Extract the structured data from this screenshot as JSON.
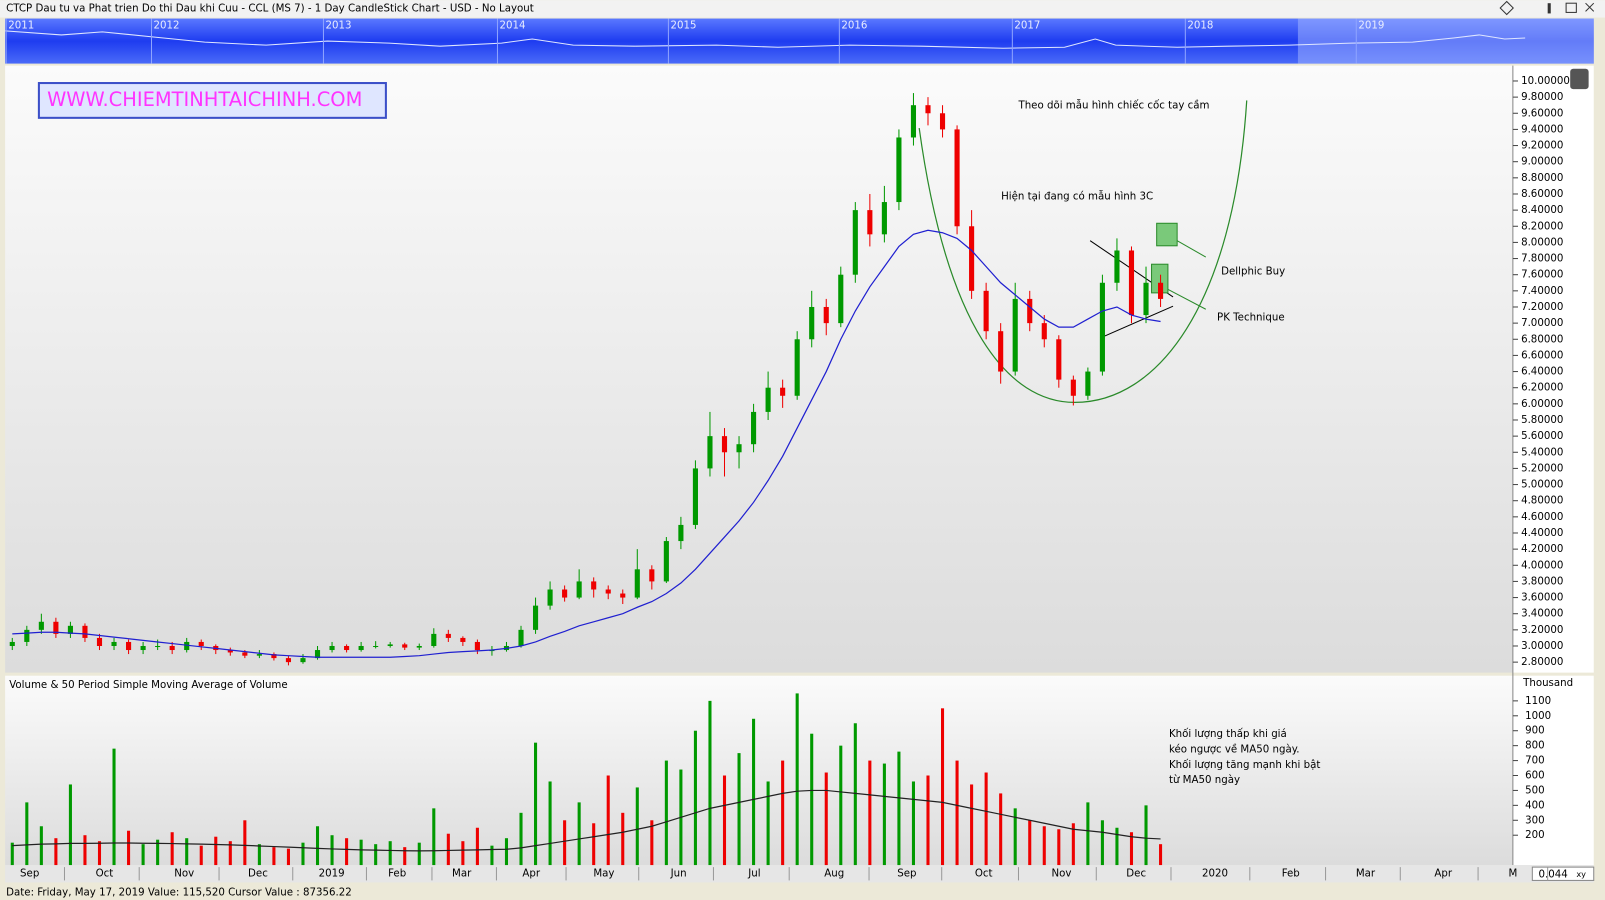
{
  "header": {
    "title": "CTCP Dau tu va Phat trien Do thi Dau khi Cuu - CCL (MS 7) - 1 Day CandleStick Chart - USD - No Layout"
  },
  "navigator": {
    "years": [
      "2011",
      "2012",
      "2013",
      "2014",
      "2015",
      "2016",
      "2017",
      "2018",
      "2019"
    ]
  },
  "chart_data": [
    {
      "type": "candlestick",
      "up_color": "#009900",
      "down_color": "#ee0000",
      "open": [
        3.0,
        3.05,
        3.2,
        3.3,
        3.15,
        3.25,
        3.1,
        3.0,
        3.05,
        2.95,
        3.0,
        3.0,
        2.95,
        3.05,
        3.0,
        2.95,
        2.92,
        2.88,
        2.9,
        2.85,
        2.8,
        2.85,
        2.95,
        3.0,
        2.95,
        3.0,
        3.0,
        3.02,
        2.98,
        3.0,
        3.15,
        3.1,
        3.05,
        2.95,
        2.95,
        3.0,
        3.2,
        3.5,
        3.7,
        3.6,
        3.8,
        3.7,
        3.65,
        3.6,
        3.95,
        3.8,
        4.3,
        4.5,
        5.2,
        5.6,
        5.4,
        5.5,
        5.9,
        6.2,
        6.1,
        6.8,
        7.2,
        7.0,
        7.6,
        8.4,
        8.1,
        8.5,
        9.3,
        9.7,
        9.6,
        9.4,
        8.2,
        7.4,
        6.9,
        6.4,
        7.3,
        7.0,
        6.8,
        6.3,
        6.1,
        6.4,
        7.5,
        7.9,
        7.1,
        7.5
      ],
      "high": [
        3.1,
        3.25,
        3.4,
        3.35,
        3.3,
        3.28,
        3.15,
        3.1,
        3.08,
        3.05,
        3.08,
        3.05,
        3.1,
        3.08,
        3.02,
        2.98,
        2.95,
        2.95,
        2.92,
        2.88,
        2.9,
        3.0,
        3.05,
        3.02,
        3.05,
        3.06,
        3.05,
        3.04,
        3.03,
        3.22,
        3.2,
        3.12,
        3.08,
        3.0,
        3.05,
        3.25,
        3.6,
        3.8,
        3.75,
        3.95,
        3.85,
        3.75,
        3.7,
        4.2,
        4.0,
        4.35,
        4.6,
        5.3,
        5.9,
        5.7,
        5.6,
        6.0,
        6.4,
        6.3,
        6.9,
        7.4,
        7.3,
        7.7,
        8.5,
        8.6,
        8.7,
        9.4,
        9.85,
        9.8,
        9.7,
        9.45,
        8.4,
        7.5,
        7.0,
        7.5,
        7.4,
        7.1,
        6.85,
        6.35,
        6.45,
        7.6,
        8.05,
        7.95,
        7.7,
        7.6
      ],
      "low": [
        2.95,
        3.0,
        3.15,
        3.1,
        3.1,
        3.05,
        2.95,
        2.95,
        2.9,
        2.9,
        2.95,
        2.9,
        2.92,
        2.95,
        2.9,
        2.88,
        2.85,
        2.85,
        2.82,
        2.76,
        2.78,
        2.83,
        2.92,
        2.92,
        2.93,
        2.97,
        2.98,
        2.95,
        2.95,
        2.98,
        3.05,
        3.0,
        2.9,
        2.88,
        2.93,
        2.98,
        3.15,
        3.45,
        3.55,
        3.58,
        3.6,
        3.58,
        3.52,
        3.58,
        3.7,
        3.78,
        4.2,
        4.45,
        5.1,
        5.1,
        5.2,
        5.4,
        5.8,
        5.95,
        6.05,
        6.7,
        6.85,
        6.95,
        7.5,
        7.95,
        8.0,
        8.4,
        9.2,
        9.45,
        9.3,
        8.1,
        7.3,
        6.8,
        6.25,
        6.35,
        6.9,
        6.7,
        6.2,
        5.98,
        6.05,
        6.35,
        7.4,
        7.0,
        7.0,
        7.2
      ],
      "close": [
        3.05,
        3.2,
        3.3,
        3.15,
        3.25,
        3.1,
        3.0,
        3.05,
        2.95,
        3.0,
        3.0,
        2.95,
        3.05,
        3.0,
        2.95,
        2.92,
        2.88,
        2.9,
        2.85,
        2.8,
        2.85,
        2.95,
        3.0,
        2.95,
        3.0,
        3.0,
        3.02,
        2.98,
        3.0,
        3.15,
        3.1,
        3.05,
        2.95,
        2.95,
        3.0,
        3.2,
        3.5,
        3.7,
        3.6,
        3.8,
        3.7,
        3.65,
        3.6,
        3.95,
        3.8,
        4.3,
        4.5,
        5.2,
        5.6,
        5.4,
        5.5,
        5.9,
        6.2,
        6.1,
        6.8,
        7.2,
        7.0,
        7.6,
        8.4,
        8.1,
        8.5,
        9.3,
        9.7,
        9.6,
        9.4,
        8.2,
        7.4,
        6.9,
        6.4,
        7.3,
        7.0,
        6.8,
        6.3,
        6.1,
        6.4,
        7.5,
        7.9,
        7.1,
        7.5,
        7.3
      ],
      "ma": {
        "color": "#2020d0",
        "values": [
          3.15,
          3.16,
          3.17,
          3.17,
          3.16,
          3.15,
          3.13,
          3.11,
          3.09,
          3.07,
          3.05,
          3.03,
          3.01,
          2.99,
          2.97,
          2.95,
          2.93,
          2.91,
          2.89,
          2.88,
          2.87,
          2.86,
          2.86,
          2.86,
          2.86,
          2.86,
          2.86,
          2.87,
          2.88,
          2.9,
          2.92,
          2.93,
          2.94,
          2.95,
          2.97,
          3.0,
          3.05,
          3.12,
          3.18,
          3.25,
          3.3,
          3.35,
          3.4,
          3.48,
          3.55,
          3.65,
          3.78,
          3.95,
          4.15,
          4.35,
          4.55,
          4.78,
          5.05,
          5.35,
          5.7,
          6.05,
          6.4,
          6.8,
          7.15,
          7.45,
          7.7,
          7.95,
          8.1,
          8.15,
          8.12,
          8.05,
          7.9,
          7.7,
          7.5,
          7.35,
          7.2,
          7.05,
          6.95,
          6.95,
          7.05,
          7.15,
          7.2,
          7.1,
          7.05,
          7.02
        ]
      },
      "ylim": [
        2.67,
        10.19
      ],
      "yticks": [
        {
          "value": 2.8,
          "label": "2.80000"
        },
        {
          "value": 3.0,
          "label": "3.00000"
        },
        {
          "value": 3.2,
          "label": "3.20000"
        },
        {
          "value": 3.4,
          "label": "3.40000"
        },
        {
          "value": 3.6,
          "label": "3.60000"
        },
        {
          "value": 3.8,
          "label": "3.80000"
        },
        {
          "value": 4.0,
          "label": "4.00000"
        },
        {
          "value": 4.2,
          "label": "4.20000"
        },
        {
          "value": 4.4,
          "label": "4.40000"
        },
        {
          "value": 4.6,
          "label": "4.60000"
        },
        {
          "value": 4.8,
          "label": "4.80000"
        },
        {
          "value": 5.0,
          "label": "5.00000"
        },
        {
          "value": 5.2,
          "label": "5.20000"
        },
        {
          "value": 5.4,
          "label": "5.40000"
        },
        {
          "value": 5.6,
          "label": "5.60000"
        },
        {
          "value": 5.8,
          "label": "5.80000"
        },
        {
          "value": 6.0,
          "label": "6.00000"
        },
        {
          "value": 6.2,
          "label": "6.20000"
        },
        {
          "value": 6.4,
          "label": "6.40000"
        },
        {
          "value": 6.6,
          "label": "6.60000"
        },
        {
          "value": 6.8,
          "label": "6.80000"
        },
        {
          "value": 7.0,
          "label": "7.00000"
        },
        {
          "value": 7.2,
          "label": "7.20000"
        },
        {
          "value": 7.4,
          "label": "7.40000"
        },
        {
          "value": 7.6,
          "label": "7.60000"
        },
        {
          "value": 7.8,
          "label": "7.80000"
        },
        {
          "value": 8.0,
          "label": "8.00000"
        },
        {
          "value": 8.2,
          "label": "8.20000"
        },
        {
          "value": 8.4,
          "label": "8.40000"
        },
        {
          "value": 8.6,
          "label": "8.60000"
        },
        {
          "value": 8.8,
          "label": "8.80000"
        },
        {
          "value": 9.0,
          "label": "9.00000"
        },
        {
          "value": 9.2,
          "label": "9.20000"
        },
        {
          "value": 9.4,
          "label": "9.40000"
        },
        {
          "value": 9.6,
          "label": "9.60000"
        },
        {
          "value": 9.8,
          "label": "9.80000"
        },
        {
          "value": 10.0,
          "label": "10.00000"
        }
      ],
      "watermark": "WWW.CHIEMTINHTAICHINH.COM",
      "annotations": [
        "Theo dõi mẫu hình chiếc cốc tay cầm",
        "Hiện tại đang có mẫu hình 3C",
        "Dellphic Buy",
        "PK Technique"
      ]
    },
    {
      "type": "bar",
      "title": "Volume & 50 Period Simple Moving Average of Volume",
      "y_label": "Thousand",
      "values": [
        150,
        420,
        260,
        180,
        540,
        200,
        160,
        780,
        230,
        140,
        170,
        220,
        180,
        130,
        190,
        160,
        300,
        140,
        120,
        110,
        150,
        260,
        200,
        180,
        170,
        140,
        160,
        120,
        150,
        380,
        210,
        160,
        250,
        130,
        180,
        350,
        820,
        560,
        300,
        420,
        280,
        600,
        350,
        520,
        300,
        700,
        640,
        900,
        1100,
        600,
        750,
        980,
        560,
        700,
        1150,
        880,
        620,
        800,
        950,
        700,
        680,
        760,
        560,
        600,
        1050,
        700,
        540,
        620,
        480,
        380,
        300,
        260,
        240,
        280,
        420,
        300,
        250,
        220,
        400,
        140
      ],
      "ma": {
        "color": "#222222",
        "values": [
          130,
          135,
          140,
          142,
          145,
          145,
          146,
          148,
          148,
          146,
          145,
          144,
          142,
          140,
          138,
          135,
          132,
          128,
          124,
          120,
          116,
          112,
          108,
          105,
          102,
          100,
          98,
          96,
          95,
          96,
          98,
          100,
          102,
          104,
          106,
          115,
          130,
          145,
          160,
          175,
          190,
          205,
          220,
          240,
          260,
          290,
          320,
          350,
          380,
          400,
          420,
          440,
          460,
          480,
          495,
          500,
          500,
          490,
          480,
          470,
          460,
          450,
          440,
          430,
          420,
          400,
          380,
          360,
          340,
          320,
          300,
          280,
          260,
          240,
          230,
          220,
          205,
          190,
          180,
          175
        ]
      },
      "ylim": [
        0,
        1200
      ],
      "yticks": [
        200,
        300,
        400,
        500,
        600,
        700,
        800,
        900,
        1000,
        1100
      ],
      "notes": [
        "Khối lượng thấp khi giá",
        "kéo ngược về MA50 ngày.",
        "Khối lượng tăng mạnh khi bật",
        "từ MA50 ngày"
      ],
      "x_labels": [
        "Sep",
        "Oct",
        "Nov",
        "Dec",
        "2019",
        "Feb",
        "Mar",
        "Apr",
        "May",
        "Jun",
        "Jul",
        "Aug",
        "Sep",
        "Oct",
        "Nov",
        "Dec",
        "2020",
        "Feb",
        "Mar",
        "Apr",
        "M"
      ]
    }
  ],
  "footer": {
    "status": "Date: Friday, May 17, 2019 Value: 115,520 Cursor Value : 87356.22",
    "zoom": "0.044",
    "mode": "xy"
  }
}
